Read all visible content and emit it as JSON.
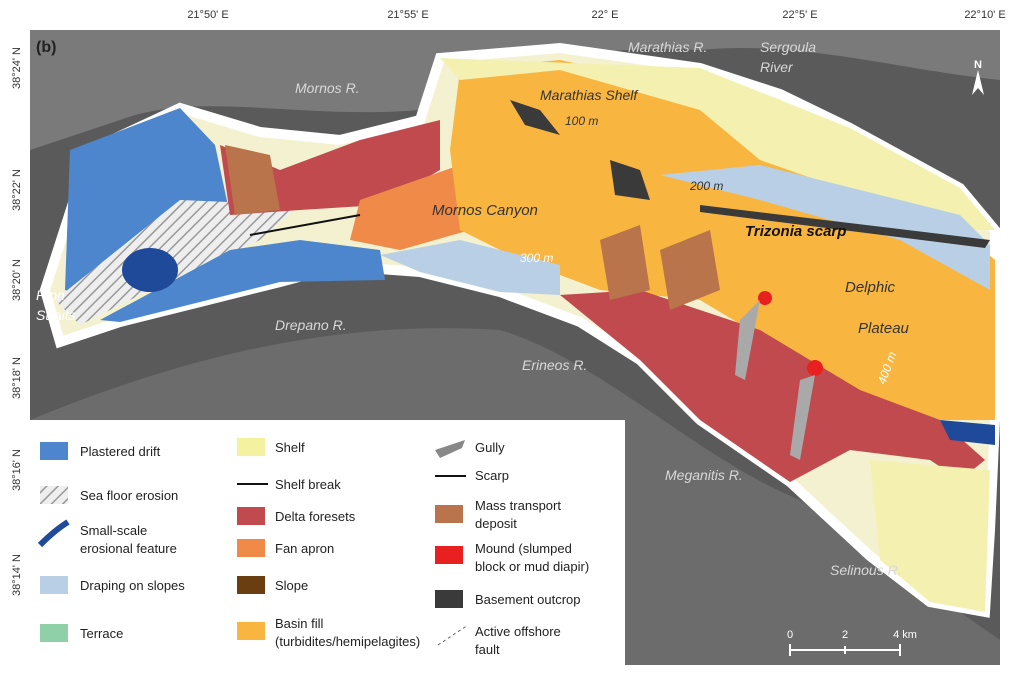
{
  "panel_label": "(b)",
  "longitude_ticks": [
    "21°50' E",
    "21°55' E",
    "22° E",
    "22°5' E",
    "22°10' E"
  ],
  "latitude_ticks": [
    "38°24' N",
    "38°22' N",
    "38°20' N",
    "38°18' N",
    "38°16' N",
    "38°14' N"
  ],
  "place_labels": {
    "mornos_river": "Mornos R.",
    "marathias_river": "Marathias R.",
    "sergoula_river": [
      "Sergoula",
      "River"
    ],
    "marathias_shelf": "Marathias Shelf",
    "depth_100": "100 m",
    "depth_200": "200 m",
    "mornos_canyon": "Mornos Canyon",
    "trizonia_scarp": "Trizonia scarp",
    "depth_300": "300 m",
    "delphic_plateau": [
      "Delphic",
      "Plateau"
    ],
    "rion_straits": [
      "Rion",
      "Straits"
    ],
    "drepano_river": "Drepano R.",
    "erineos_river": "Erineos R.",
    "depth_400": "400 m",
    "meganitis_river": "Meganitis R.",
    "selinous_river": "Selinous R."
  },
  "north_arrow": "N",
  "legend": {
    "items": [
      [
        "Plastered drift"
      ],
      [
        "Sea floor erosion"
      ],
      [
        "Small-scale",
        "erosional feature"
      ],
      [
        "Draping on slopes"
      ],
      [
        "Terrace"
      ],
      [
        "Shelf"
      ],
      [
        "Shelf break"
      ],
      [
        "Delta foresets"
      ],
      [
        "Fan apron"
      ],
      [
        "Slope"
      ],
      [
        "Basin fill",
        "(turbidites/hemipelagites)"
      ],
      [
        "Gully"
      ],
      [
        "Scarp"
      ],
      [
        "Mass transport",
        "deposit"
      ],
      [
        "Mound (slumped",
        "block or mud diapir)"
      ],
      [
        "Basement outcrop"
      ],
      [
        "Active offshore",
        "fault"
      ]
    ]
  },
  "scale_bar": {
    "labels": [
      "0",
      "2",
      "4 km"
    ]
  }
}
